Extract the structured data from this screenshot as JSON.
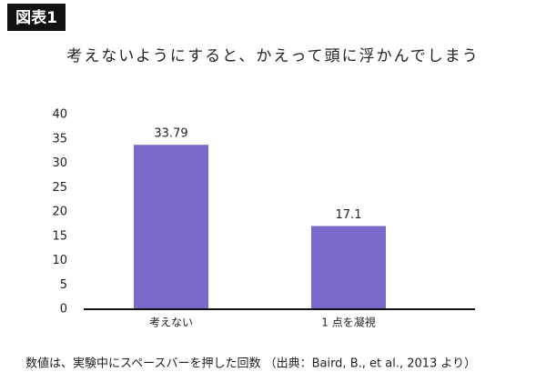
{
  "badge": "図表1",
  "chart_data": {
    "type": "bar",
    "title": "考えないようにすると、かえって頭に浮かんでしまう",
    "categories": [
      "考えない",
      "1 点を凝視"
    ],
    "values": [
      33.79,
      17.1
    ],
    "color": "#7b68c9",
    "ylim": [
      0,
      40
    ],
    "yticks": [
      0,
      5,
      10,
      15,
      20,
      25,
      30,
      35,
      40
    ],
    "grid": false,
    "note": "数値は、実験中にスペースバーを押した回数 （出典：Baird, B., et al., 2013 より）"
  }
}
